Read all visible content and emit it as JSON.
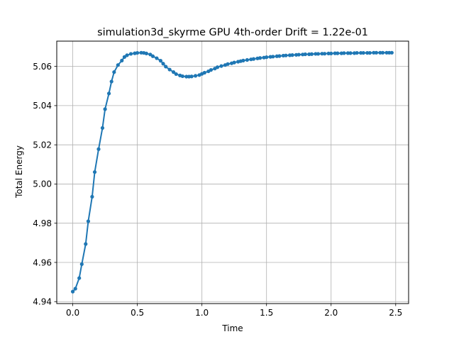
{
  "chart_data": {
    "type": "line",
    "title": "simulation3d_skyrme GPU 4th-order Drift = 1.22e-01",
    "xlabel": "Time",
    "ylabel": "Total Energy",
    "xlim": [
      -0.124,
      2.6
    ],
    "ylim": [
      4.939,
      5.0729
    ],
    "xticks": [
      0.0,
      0.5,
      1.0,
      1.5,
      2.0,
      2.5
    ],
    "xtick_labels": [
      "0.0",
      "0.5",
      "1.0",
      "1.5",
      "2.0",
      "2.5"
    ],
    "yticks": [
      4.94,
      4.96,
      4.98,
      5.0,
      5.02,
      5.04,
      5.06
    ],
    "ytick_labels": [
      "4.94",
      "4.96",
      "4.98",
      "5.00",
      "5.02",
      "5.04",
      "5.06"
    ],
    "grid": true,
    "series": [
      {
        "color": "#1f77b4",
        "marker": "circle",
        "x": [
          0.0,
          0.02,
          0.05,
          0.07,
          0.1,
          0.12,
          0.15,
          0.17,
          0.2,
          0.23,
          0.25,
          0.28,
          0.3,
          0.32,
          0.35,
          0.38,
          0.4,
          0.42,
          0.45,
          0.48,
          0.5,
          0.53,
          0.55,
          0.57,
          0.6,
          0.62,
          0.65,
          0.68,
          0.7,
          0.72,
          0.75,
          0.78,
          0.8,
          0.83,
          0.85,
          0.88,
          0.9,
          0.92,
          0.95,
          0.98,
          1.0,
          1.02,
          1.05,
          1.07,
          1.1,
          1.12,
          1.15,
          1.18,
          1.2,
          1.23,
          1.25,
          1.28,
          1.3,
          1.32,
          1.35,
          1.38,
          1.4,
          1.43,
          1.45,
          1.48,
          1.5,
          1.53,
          1.55,
          1.58,
          1.6,
          1.63,
          1.65,
          1.68,
          1.7,
          1.73,
          1.75,
          1.78,
          1.8,
          1.83,
          1.85,
          1.88,
          1.9,
          1.93,
          1.95,
          1.98,
          2.0,
          2.03,
          2.05,
          2.08,
          2.1,
          2.13,
          2.15,
          2.18,
          2.2,
          2.23,
          2.25,
          2.28,
          2.3,
          2.33,
          2.35,
          2.38,
          2.4,
          2.43,
          2.45,
          2.47
        ],
        "y": [
          4.9451,
          4.9466,
          4.952,
          4.9591,
          4.9694,
          4.981,
          4.9935,
          5.0061,
          5.0178,
          5.0286,
          5.0382,
          5.0462,
          5.0523,
          5.0571,
          5.0607,
          5.063,
          5.0648,
          5.0657,
          5.0664,
          5.0667,
          5.0669,
          5.067,
          5.0669,
          5.0666,
          5.0661,
          5.0652,
          5.0642,
          5.0629,
          5.0614,
          5.0599,
          5.0584,
          5.0571,
          5.0561,
          5.0554,
          5.055,
          5.0548,
          5.0548,
          5.0549,
          5.0552,
          5.0556,
          5.0562,
          5.0568,
          5.0575,
          5.0582,
          5.0589,
          5.0596,
          5.0602,
          5.0607,
          5.0612,
          5.0616,
          5.062,
          5.0624,
          5.0627,
          5.063,
          5.0633,
          5.0636,
          5.0638,
          5.0641,
          5.0643,
          5.0645,
          5.0647,
          5.0649,
          5.065,
          5.0652,
          5.0653,
          5.0655,
          5.0656,
          5.0657,
          5.0658,
          5.0659,
          5.066,
          5.0661,
          5.0662,
          5.0662,
          5.0663,
          5.0664,
          5.0664,
          5.0665,
          5.0665,
          5.0666,
          5.0666,
          5.0667,
          5.0667,
          5.0667,
          5.0668,
          5.0668,
          5.0668,
          5.0668,
          5.0669,
          5.0669,
          5.0669,
          5.0669,
          5.0669,
          5.067,
          5.067,
          5.067,
          5.067,
          5.067,
          5.067,
          5.067
        ]
      }
    ]
  }
}
